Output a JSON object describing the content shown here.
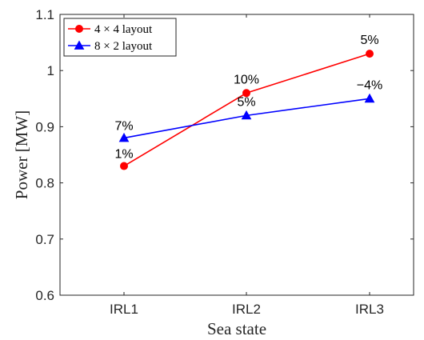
{
  "chart_data": {
    "type": "line",
    "title": "",
    "xlabel": "Sea state",
    "ylabel": "Power [MW]",
    "categories": [
      "IRL1",
      "IRL2",
      "IRL3"
    ],
    "ylim": [
      0.6,
      1.1
    ],
    "yticks": [
      "0.6",
      "0.7",
      "0.8",
      "0.9",
      "1",
      "1.1"
    ],
    "grid": false,
    "legend_position": "top-left",
    "series": [
      {
        "name": "4 × 4 layout",
        "color": "#ff0000",
        "marker": "circle",
        "values": [
          0.83,
          0.96,
          1.03
        ],
        "labels": [
          "1%",
          "10%",
          "5%"
        ]
      },
      {
        "name": "8 × 2 layout",
        "color": "#0000ff",
        "marker": "triangle",
        "values": [
          0.88,
          0.92,
          0.95
        ],
        "labels": [
          "7%",
          "5%",
          "−4%"
        ]
      }
    ]
  }
}
